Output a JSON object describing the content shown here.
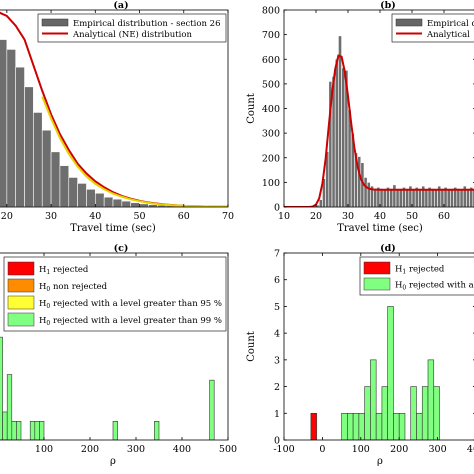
{
  "chart_data": [
    {
      "id": "a",
      "panel_label": "(a)",
      "type": "bar",
      "xlabel": "Travel time (sec)",
      "ylabel": "",
      "xlim": [
        18,
        70
      ],
      "ylim": [
        0,
        1
      ],
      "xticks": [
        20,
        30,
        40,
        50,
        60,
        70
      ],
      "yticks": [],
      "x_tick_labels": [
        "20",
        "30",
        "40",
        "50",
        "60",
        "70"
      ],
      "bin_width": 2,
      "bars": [
        {
          "x": 18,
          "y": 0.85
        },
        {
          "x": 20,
          "y": 0.8
        },
        {
          "x": 22,
          "y": 0.71
        },
        {
          "x": 24,
          "y": 0.61
        },
        {
          "x": 26,
          "y": 0.48
        },
        {
          "x": 28,
          "y": 0.39
        },
        {
          "x": 30,
          "y": 0.28
        },
        {
          "x": 32,
          "y": 0.21
        },
        {
          "x": 34,
          "y": 0.15
        },
        {
          "x": 36,
          "y": 0.12
        },
        {
          "x": 38,
          "y": 0.09
        },
        {
          "x": 40,
          "y": 0.07
        },
        {
          "x": 42,
          "y": 0.05
        },
        {
          "x": 44,
          "y": 0.04
        },
        {
          "x": 46,
          "y": 0.03
        },
        {
          "x": 48,
          "y": 0.022
        },
        {
          "x": 50,
          "y": 0.016
        },
        {
          "x": 52,
          "y": 0.012
        },
        {
          "x": 54,
          "y": 0.009
        },
        {
          "x": 56,
          "y": 0.007
        },
        {
          "x": 58,
          "y": 0.005
        },
        {
          "x": 60,
          "y": 0.004
        },
        {
          "x": 62,
          "y": 0.003
        }
      ],
      "curves": [
        {
          "name": "Analytical (NE) distribution",
          "color": "#cc0000",
          "points": [
            [
              18,
              0.99
            ],
            [
              20,
              0.97
            ],
            [
              22,
              0.92
            ],
            [
              24,
              0.85
            ],
            [
              26,
              0.72
            ],
            [
              28,
              0.59
            ],
            [
              30,
              0.47
            ],
            [
              32,
              0.37
            ],
            [
              34,
              0.29
            ],
            [
              36,
              0.22
            ],
            [
              38,
              0.17
            ],
            [
              40,
              0.13
            ],
            [
              42,
              0.1
            ],
            [
              44,
              0.075
            ],
            [
              46,
              0.056
            ],
            [
              48,
              0.042
            ],
            [
              50,
              0.031
            ],
            [
              52,
              0.023
            ],
            [
              54,
              0.017
            ],
            [
              56,
              0.012
            ],
            [
              58,
              0.009
            ],
            [
              60,
              0.006
            ],
            [
              62,
              0.004
            ],
            [
              64,
              0.003
            ],
            [
              66,
              0.002
            ],
            [
              68,
              0.001
            ],
            [
              70,
              0.001
            ]
          ]
        },
        {
          "name": "",
          "color": "#e6d200",
          "points": [
            [
              28,
              0.56
            ],
            [
              30,
              0.45
            ],
            [
              32,
              0.35
            ],
            [
              34,
              0.27
            ],
            [
              36,
              0.205
            ],
            [
              38,
              0.155
            ],
            [
              40,
              0.118
            ],
            [
              42,
              0.09
            ],
            [
              44,
              0.068
            ],
            [
              46,
              0.052
            ],
            [
              48,
              0.039
            ],
            [
              50,
              0.029
            ],
            [
              52,
              0.021
            ],
            [
              54,
              0.015
            ],
            [
              56,
              0.011
            ],
            [
              58,
              0.008
            ],
            [
              60,
              0.006
            ],
            [
              62,
              0.004
            ],
            [
              64,
              0.003
            ],
            [
              66,
              0.002
            ],
            [
              68,
              0.001
            ],
            [
              70,
              0.001
            ]
          ]
        }
      ],
      "legend": [
        {
          "label": "Empirical distribution - section 26",
          "kind": "patch",
          "color": "#666666"
        },
        {
          "label": "Analytical (NE) distribution",
          "kind": "line",
          "color": "#cc0000"
        }
      ]
    },
    {
      "id": "b",
      "panel_label": "(b)",
      "type": "bar",
      "xlabel": "Travel time (sec)",
      "ylabel": "Count",
      "xlim": [
        10,
        70
      ],
      "ylim": [
        0,
        800
      ],
      "xticks": [
        10,
        20,
        30,
        40,
        50,
        60
      ],
      "yticks": [
        0,
        100,
        200,
        300,
        400,
        500,
        600,
        700,
        800
      ],
      "x_tick_labels": [
        "10",
        "20",
        "30",
        "40",
        "50",
        "60"
      ],
      "y_tick_labels": [
        "0",
        "100",
        "200",
        "300",
        "400",
        "500",
        "600",
        "700",
        "800"
      ],
      "bin_width": 1,
      "bars": [
        {
          "x": 20,
          "y": 8
        },
        {
          "x": 21,
          "y": 30
        },
        {
          "x": 22,
          "y": 115
        },
        {
          "x": 23,
          "y": 225
        },
        {
          "x": 24,
          "y": 510
        },
        {
          "x": 25,
          "y": 530
        },
        {
          "x": 26,
          "y": 600
        },
        {
          "x": 27,
          "y": 695
        },
        {
          "x": 28,
          "y": 565
        },
        {
          "x": 29,
          "y": 555
        },
        {
          "x": 30,
          "y": 395
        },
        {
          "x": 31,
          "y": 300
        },
        {
          "x": 32,
          "y": 220
        },
        {
          "x": 33,
          "y": 205
        },
        {
          "x": 34,
          "y": 180
        },
        {
          "x": 35,
          "y": 120
        },
        {
          "x": 36,
          "y": 100
        },
        {
          "x": 37,
          "y": 85
        },
        {
          "x": 38,
          "y": 75
        },
        {
          "x": 39,
          "y": 80
        },
        {
          "x": 40,
          "y": 75
        },
        {
          "x": 41,
          "y": 70
        },
        {
          "x": 42,
          "y": 80
        },
        {
          "x": 43,
          "y": 75
        },
        {
          "x": 44,
          "y": 90
        },
        {
          "x": 45,
          "y": 70
        },
        {
          "x": 46,
          "y": 75
        },
        {
          "x": 47,
          "y": 80
        },
        {
          "x": 48,
          "y": 75
        },
        {
          "x": 49,
          "y": 85
        },
        {
          "x": 50,
          "y": 70
        },
        {
          "x": 51,
          "y": 80
        },
        {
          "x": 52,
          "y": 75
        },
        {
          "x": 53,
          "y": 85
        },
        {
          "x": 54,
          "y": 70
        },
        {
          "x": 55,
          "y": 80
        },
        {
          "x": 56,
          "y": 75
        },
        {
          "x": 57,
          "y": 70
        },
        {
          "x": 58,
          "y": 85
        },
        {
          "x": 59,
          "y": 75
        },
        {
          "x": 60,
          "y": 80
        },
        {
          "x": 61,
          "y": 70
        },
        {
          "x": 62,
          "y": 75
        },
        {
          "x": 63,
          "y": 80
        },
        {
          "x": 64,
          "y": 75
        },
        {
          "x": 65,
          "y": 70
        },
        {
          "x": 66,
          "y": 85
        },
        {
          "x": 67,
          "y": 75
        },
        {
          "x": 68,
          "y": 80
        },
        {
          "x": 69,
          "y": 75
        }
      ],
      "curves": [
        {
          "name": "Analytical",
          "color": "#cc0000",
          "points": [
            [
              10,
              0
            ],
            [
              18,
              0
            ],
            [
              19,
              2
            ],
            [
              20,
              10
            ],
            [
              21,
              35
            ],
            [
              22,
              95
            ],
            [
              23,
              195
            ],
            [
              24,
              330
            ],
            [
              25,
              460
            ],
            [
              26,
              560
            ],
            [
              27,
              615
            ],
            [
              28,
              610
            ],
            [
              29,
              550
            ],
            [
              30,
              450
            ],
            [
              31,
              340
            ],
            [
              32,
              240
            ],
            [
              33,
              165
            ],
            [
              34,
              115
            ],
            [
              35,
              90
            ],
            [
              36,
              78
            ],
            [
              37,
              73
            ],
            [
              38,
              71
            ],
            [
              40,
              70
            ],
            [
              50,
              70
            ],
            [
              60,
              70
            ],
            [
              70,
              70
            ]
          ]
        }
      ],
      "legend": [
        {
          "label": "Empirical d",
          "kind": "patch",
          "color": "#666666"
        },
        {
          "label": "Analytical",
          "kind": "line",
          "color": "#cc0000"
        }
      ]
    },
    {
      "id": "c",
      "panel_label": "(c)",
      "type": "bar",
      "xlabel": "ρ",
      "ylabel": "",
      "xlim": [
        0,
        500
      ],
      "ylim": [
        0,
        1
      ],
      "xticks": [
        100,
        200,
        300,
        400,
        500
      ],
      "yticks": [],
      "x_tick_labels": [
        "100",
        "200",
        "300",
        "400",
        "500"
      ],
      "bin_width": 10,
      "bars": [
        {
          "x": 0,
          "y": 0.55,
          "color": "#80ff80"
        },
        {
          "x": 10,
          "y": 0.15,
          "color": "#80ff80"
        },
        {
          "x": 20,
          "y": 0.35,
          "color": "#80ff80"
        },
        {
          "x": 30,
          "y": 0.1,
          "color": "#80ff80"
        },
        {
          "x": 40,
          "y": 0.1,
          "color": "#80ff80"
        },
        {
          "x": 70,
          "y": 0.1,
          "color": "#80ff80"
        },
        {
          "x": 80,
          "y": 0.1,
          "color": "#80ff80"
        },
        {
          "x": 90,
          "y": 0.1,
          "color": "#80ff80"
        },
        {
          "x": 250,
          "y": 0.1,
          "color": "#80ff80"
        },
        {
          "x": 340,
          "y": 0.1,
          "color": "#80ff80"
        },
        {
          "x": 460,
          "y": 0.32,
          "color": "#80ff80"
        }
      ],
      "curves": [],
      "legend": [
        {
          "label": "H",
          "sub": "1",
          "rest": " rejected",
          "kind": "patch",
          "color": "#ff0000"
        },
        {
          "label": "H",
          "sub": "0",
          "rest": " non rejected",
          "kind": "patch",
          "color": "#ff8c00"
        },
        {
          "label": "H",
          "sub": "0",
          "rest": " rejected with a level greater than 95 %",
          "kind": "patch",
          "color": "#ffff33"
        },
        {
          "label": "H",
          "sub": "0",
          "rest": " rejected with a level greater than 99 %",
          "kind": "patch",
          "color": "#80ff80"
        }
      ]
    },
    {
      "id": "d",
      "panel_label": "(d)",
      "type": "bar",
      "xlabel": "ρ",
      "ylabel": "Count",
      "xlim": [
        -100,
        400
      ],
      "ylim": [
        0,
        7
      ],
      "xticks": [
        -100,
        0,
        100,
        200,
        300,
        400
      ],
      "yticks": [
        0,
        1,
        2,
        3,
        4,
        5,
        6,
        7
      ],
      "x_tick_labels": [
        "-100",
        "0",
        "100",
        "200",
        "300",
        "400"
      ],
      "y_tick_labels": [
        "0",
        "1",
        "2",
        "3",
        "4",
        "5",
        "6",
        "7"
      ],
      "bin_width": 15,
      "bars": [
        {
          "x": -30,
          "y": 1,
          "color": "#ff0000"
        },
        {
          "x": 50,
          "y": 1,
          "color": "#80ff80"
        },
        {
          "x": 65,
          "y": 1,
          "color": "#80ff80"
        },
        {
          "x": 80,
          "y": 1,
          "color": "#80ff80"
        },
        {
          "x": 95,
          "y": 1,
          "color": "#80ff80"
        },
        {
          "x": 110,
          "y": 2,
          "color": "#80ff80"
        },
        {
          "x": 125,
          "y": 3,
          "color": "#80ff80"
        },
        {
          "x": 140,
          "y": 1,
          "color": "#80ff80"
        },
        {
          "x": 155,
          "y": 2,
          "color": "#80ff80"
        },
        {
          "x": 170,
          "y": 5,
          "color": "#80ff80"
        },
        {
          "x": 185,
          "y": 1,
          "color": "#80ff80"
        },
        {
          "x": 200,
          "y": 1,
          "color": "#80ff80"
        },
        {
          "x": 230,
          "y": 2,
          "color": "#80ff80"
        },
        {
          "x": 245,
          "y": 1,
          "color": "#80ff80"
        },
        {
          "x": 260,
          "y": 2,
          "color": "#80ff80"
        },
        {
          "x": 275,
          "y": 3,
          "color": "#80ff80"
        },
        {
          "x": 290,
          "y": 2,
          "color": "#80ff80"
        }
      ],
      "curves": [],
      "legend": [
        {
          "label": "H",
          "sub": "1",
          "rest": " rejected",
          "kind": "patch",
          "color": "#ff0000"
        },
        {
          "label": "H",
          "sub": "0",
          "rest": " rejected with a",
          "kind": "patch",
          "color": "#80ff80"
        }
      ]
    }
  ]
}
